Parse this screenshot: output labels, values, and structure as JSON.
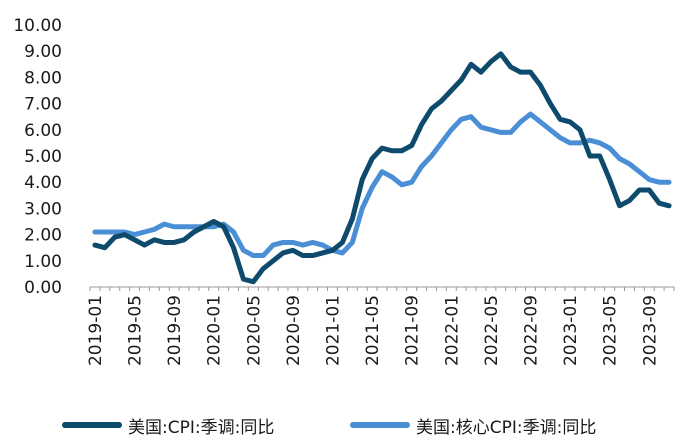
{
  "chart_data": {
    "type": "line",
    "title": "",
    "xlabel": "",
    "ylabel": "",
    "ylim": [
      0,
      10
    ],
    "yticks": [
      "0.00",
      "1.00",
      "2.00",
      "3.00",
      "4.00",
      "5.00",
      "6.00",
      "7.00",
      "8.00",
      "9.00",
      "10.00"
    ],
    "xticks": [
      "2019-01",
      "2019-05",
      "2019-09",
      "2020-01",
      "2020-05",
      "2020-09",
      "2021-01",
      "2021-05",
      "2021-09",
      "2022-01",
      "2022-05",
      "2022-09",
      "2023-01",
      "2023-05",
      "2023-09"
    ],
    "x": [
      "2019-01",
      "2019-02",
      "2019-03",
      "2019-04",
      "2019-05",
      "2019-06",
      "2019-07",
      "2019-08",
      "2019-09",
      "2019-10",
      "2019-11",
      "2019-12",
      "2020-01",
      "2020-02",
      "2020-03",
      "2020-04",
      "2020-05",
      "2020-06",
      "2020-07",
      "2020-08",
      "2020-09",
      "2020-10",
      "2020-11",
      "2020-12",
      "2021-01",
      "2021-02",
      "2021-03",
      "2021-04",
      "2021-05",
      "2021-06",
      "2021-07",
      "2021-08",
      "2021-09",
      "2021-10",
      "2021-11",
      "2021-12",
      "2022-01",
      "2022-02",
      "2022-03",
      "2022-04",
      "2022-05",
      "2022-06",
      "2022-07",
      "2022-08",
      "2022-09",
      "2022-10",
      "2022-11",
      "2022-12",
      "2023-01",
      "2023-02",
      "2023-03",
      "2023-04",
      "2023-05",
      "2023-06",
      "2023-07",
      "2023-08",
      "2023-09",
      "2023-10",
      "2023-11"
    ],
    "grid": false,
    "legend_position": "bottom",
    "series": [
      {
        "name": "美国:CPI:季调:同比",
        "color": "#0d4a6b",
        "values": [
          1.6,
          1.5,
          1.9,
          2.0,
          1.8,
          1.6,
          1.8,
          1.7,
          1.7,
          1.8,
          2.1,
          2.3,
          2.5,
          2.3,
          1.5,
          0.3,
          0.2,
          0.7,
          1.0,
          1.3,
          1.4,
          1.2,
          1.2,
          1.3,
          1.4,
          1.7,
          2.6,
          4.1,
          4.9,
          5.3,
          5.2,
          5.2,
          5.4,
          6.2,
          6.8,
          7.1,
          7.5,
          7.9,
          8.5,
          8.2,
          8.6,
          8.9,
          8.4,
          8.2,
          8.2,
          7.7,
          7.0,
          6.4,
          6.3,
          6.0,
          5.0,
          5.0,
          4.1,
          3.1,
          3.3,
          3.7,
          3.7,
          3.2,
          3.1
        ]
      },
      {
        "name": "美国:核心CPI:季调:同比",
        "color": "#4a8fd6",
        "values": [
          2.1,
          2.1,
          2.1,
          2.1,
          2.0,
          2.1,
          2.2,
          2.4,
          2.3,
          2.3,
          2.3,
          2.3,
          2.3,
          2.4,
          2.1,
          1.4,
          1.2,
          1.2,
          1.6,
          1.7,
          1.7,
          1.6,
          1.7,
          1.6,
          1.4,
          1.3,
          1.7,
          3.0,
          3.8,
          4.4,
          4.2,
          3.9,
          4.0,
          4.6,
          5.0,
          5.5,
          6.0,
          6.4,
          6.5,
          6.1,
          6.0,
          5.9,
          5.9,
          6.3,
          6.6,
          6.3,
          6.0,
          5.7,
          5.5,
          5.5,
          5.6,
          5.5,
          5.3,
          4.9,
          4.7,
          4.4,
          4.1,
          4.0,
          4.0
        ]
      }
    ]
  }
}
